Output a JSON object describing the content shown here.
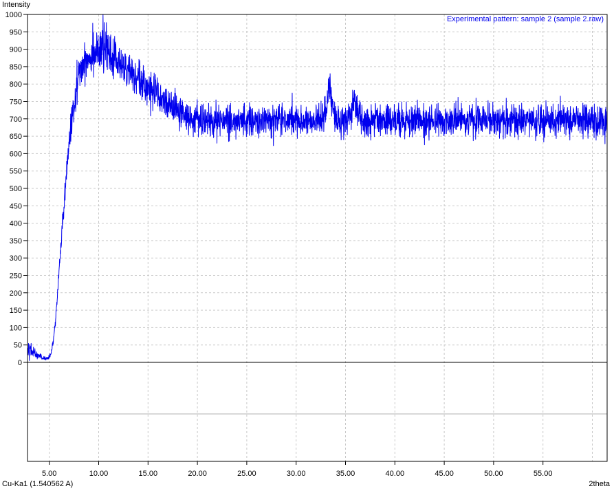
{
  "labels": {
    "y_axis_title": "Intensity",
    "x_axis_title": "2theta",
    "radiation": "Cu-Ka1 (1.540562 A)",
    "legend": "Experimental pattern: sample 2 (sample 2.raw)"
  },
  "colors": {
    "trace": "#0000ee",
    "legend_text": "#0000ee",
    "grid": "#c9c9c9",
    "separator_line": "#b0b0b0",
    "axis": "#000000",
    "background": "#ffffff"
  },
  "chart_data": {
    "type": "line",
    "title": "Experimental pattern: sample 2 (sample 2.raw)",
    "xlabel": "2theta",
    "ylabel": "Intensity",
    "x_axis": {
      "min": 2.8,
      "max": 61.5,
      "tick_values": [
        5,
        10,
        15,
        20,
        25,
        30,
        35,
        40,
        45,
        50,
        55
      ],
      "tick_labels": [
        "5.00",
        "10.00",
        "15.00",
        "20.00",
        "25.00",
        "30.00",
        "35.00",
        "40.00",
        "45.00",
        "50.00",
        "55.00"
      ],
      "gridline_values": [
        5,
        10,
        15,
        20,
        25,
        30,
        35,
        40,
        45,
        50,
        55,
        60
      ],
      "grid": true
    },
    "y_axis": {
      "data_min": 0,
      "max": 1000,
      "displayed_min": -285,
      "tick_values": [
        0,
        50,
        100,
        150,
        200,
        250,
        300,
        350,
        400,
        450,
        500,
        550,
        600,
        650,
        700,
        750,
        800,
        850,
        900,
        950,
        1000
      ],
      "tick_labels": [
        "0",
        "50",
        "100",
        "150",
        "200",
        "250",
        "300",
        "350",
        "400",
        "450",
        "500",
        "550",
        "600",
        "650",
        "700",
        "750",
        "800",
        "850",
        "900",
        "950",
        "1000"
      ],
      "gridline_values": [
        50,
        100,
        150,
        200,
        250,
        300,
        350,
        400,
        450,
        500,
        550,
        600,
        650,
        700,
        750,
        800,
        850,
        900,
        950
      ],
      "grid": true
    },
    "legend_position": "top-right-inside",
    "series": [
      {
        "name": "Experimental pattern: sample 2 (sample 2.raw)",
        "color": "#0000ee",
        "sample_step_deg": 0.02,
        "noise_model": {
          "seed": 42,
          "base_sigma": 1.5,
          "proportional_sigma": 0.031,
          "start_extra_sigma": 9,
          "start_decay_deg": 1.0
        },
        "background_points": [
          [
            2.8,
            44
          ],
          [
            3.2,
            32
          ],
          [
            3.6,
            25
          ],
          [
            4.0,
            18
          ],
          [
            4.4,
            12
          ],
          [
            4.8,
            11
          ],
          [
            5.0,
            14
          ],
          [
            5.2,
            30
          ],
          [
            5.4,
            60
          ],
          [
            5.6,
            110
          ],
          [
            5.8,
            185
          ],
          [
            6.0,
            265
          ],
          [
            6.2,
            340
          ],
          [
            6.4,
            420
          ],
          [
            6.6,
            490
          ],
          [
            6.8,
            560
          ],
          [
            7.0,
            625
          ],
          [
            7.2,
            680
          ],
          [
            7.4,
            725
          ],
          [
            7.6,
            765
          ],
          [
            7.8,
            800
          ],
          [
            8.0,
            825
          ],
          [
            8.3,
            848
          ],
          [
            8.6,
            865
          ],
          [
            9.0,
            880
          ],
          [
            9.4,
            889
          ],
          [
            9.8,
            894
          ],
          [
            10.2,
            897
          ],
          [
            10.6,
            895
          ],
          [
            11.0,
            889
          ],
          [
            11.4,
            880
          ],
          [
            11.8,
            868
          ],
          [
            12.2,
            856
          ],
          [
            12.7,
            843
          ],
          [
            13.2,
            830
          ],
          [
            13.7,
            818
          ],
          [
            14.2,
            808
          ],
          [
            14.7,
            797
          ],
          [
            15.2,
            785
          ],
          [
            15.7,
            772
          ],
          [
            16.2,
            758
          ],
          [
            16.7,
            745
          ],
          [
            17.2,
            734
          ],
          [
            17.7,
            724
          ],
          [
            18.2,
            715
          ],
          [
            18.7,
            708
          ],
          [
            19.2,
            703
          ],
          [
            19.7,
            700
          ],
          [
            20.5,
            696
          ],
          [
            21.5,
            692
          ],
          [
            23.0,
            693
          ],
          [
            25.0,
            695
          ],
          [
            27.0,
            695
          ],
          [
            29.0,
            696
          ],
          [
            31.0,
            696
          ],
          [
            33.0,
            695
          ],
          [
            34.5,
            694
          ],
          [
            36.5,
            693
          ],
          [
            38.0,
            694
          ],
          [
            40.0,
            697
          ],
          [
            42.0,
            694
          ],
          [
            44.0,
            693
          ],
          [
            46.0,
            694
          ],
          [
            48.0,
            694
          ],
          [
            50.0,
            695
          ],
          [
            52.0,
            696
          ],
          [
            54.0,
            696
          ],
          [
            56.0,
            698
          ],
          [
            58.0,
            696
          ],
          [
            60.0,
            694
          ],
          [
            61.5,
            691
          ]
        ],
        "peaks": [
          {
            "center": 33.35,
            "amplitude": 72,
            "sigma": 0.3
          },
          {
            "center": 35.9,
            "amplitude": 52,
            "sigma": 0.35
          }
        ],
        "notable_spikes": [
          {
            "x": 9.4,
            "y": 975
          },
          {
            "x": 10.45,
            "y": 1000
          },
          {
            "x": 33.35,
            "y": 820
          },
          {
            "x": 35.9,
            "y": 782
          }
        ]
      }
    ]
  }
}
